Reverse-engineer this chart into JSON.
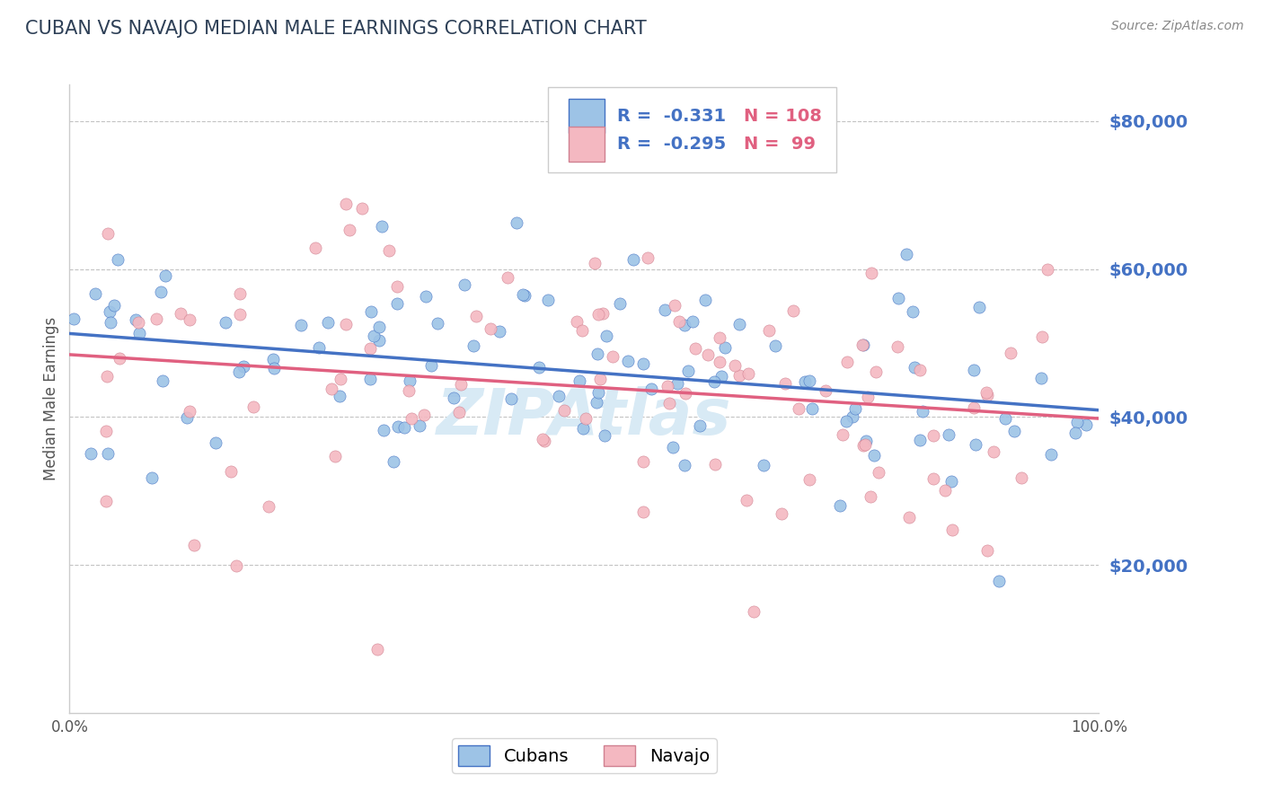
{
  "title": "CUBAN VS NAVAJO MEDIAN MALE EARNINGS CORRELATION CHART",
  "source_text": "Source: ZipAtlas.com",
  "ylabel": "Median Male Earnings",
  "xlim": [
    0,
    100
  ],
  "ylim": [
    0,
    85000
  ],
  "yticks": [
    20000,
    40000,
    60000,
    80000
  ],
  "ytick_labels": [
    "$20,000",
    "$40,000",
    "$60,000",
    "$80,000"
  ],
  "title_color": "#2E4057",
  "title_fontsize": 15,
  "right_label_color": "#4472C4",
  "cuban_color": "#9DC3E6",
  "navajo_color": "#F4B8C1",
  "cuban_line_color": "#4472C4",
  "navajo_line_color": "#E06080",
  "R_cuban": -0.331,
  "N_cuban": 108,
  "R_navajo": -0.295,
  "N_navajo": 99,
  "grid_color": "#AAAAAA",
  "background_color": "#FFFFFF",
  "watermark_color": "#D8EAF5"
}
